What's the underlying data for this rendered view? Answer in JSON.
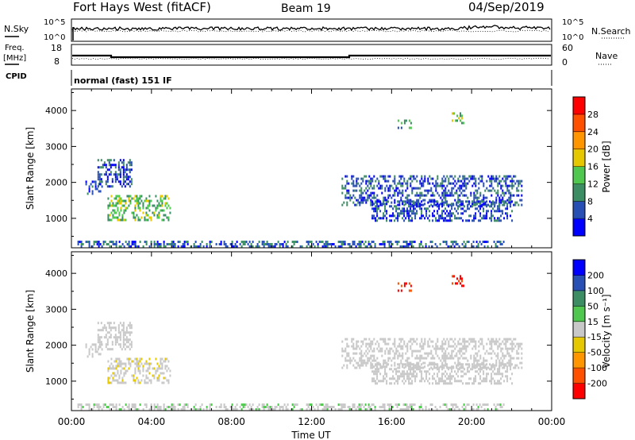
{
  "header": {
    "radar": "Fort Hays West (fitACF)",
    "beam": "Beam 19",
    "date": "04/Sep/2019",
    "mode": "normal (fast) 151 IF"
  },
  "strip_labels": {
    "nsky": "N.Sky",
    "nsearch": "N.Search",
    "freq_line1": "Freq.",
    "freq_line2": "[MHz]",
    "nave": "Nave",
    "cpid": "CPID",
    "noise_left_top": "10^5",
    "noise_left_bottom": "10^0",
    "noise_right_top": "10^5",
    "noise_right_bottom": "10^0",
    "freq_top": "18",
    "freq_bottom": "8",
    "nave_top": "60",
    "nave_bottom": "0"
  },
  "colors": {
    "power": [
      "#0000ff",
      "#2850b4",
      "#3c8c64",
      "#50c850",
      "#e6c800",
      "#ff9600",
      "#ff5000",
      "#ff0000"
    ],
    "velocity": [
      "#ff0000",
      "#ff5000",
      "#ff9600",
      "#e6c800",
      "#c8c8c8",
      "#50c850",
      "#3c8c64",
      "#2850b4",
      "#0000ff"
    ]
  },
  "chart_data": [
    {
      "type": "heatmap",
      "name": "power",
      "xlabel": "",
      "ylabel": "Slant Range [km]",
      "colorbar_label": "Power [dB]",
      "colorbar_ticks": [
        "4",
        "8",
        "12",
        "16",
        "20",
        "24",
        "28"
      ],
      "colorbar_range": [
        0,
        32
      ],
      "x_range_hours": [
        0,
        24
      ],
      "y_range_km": [
        180,
        4600
      ],
      "y_ticks": [
        "1000",
        "2000",
        "3000",
        "4000"
      ],
      "regions": [
        {
          "t": [
            0.7,
            1.5
          ],
          "r": [
            1700,
            2050
          ],
          "value": 6
        },
        {
          "t": [
            1.3,
            3.0
          ],
          "r": [
            1900,
            2650
          ],
          "value": 6
        },
        {
          "t": [
            1.8,
            4.9
          ],
          "r": [
            950,
            1650
          ],
          "value": 13
        },
        {
          "t": [
            0.3,
            22.0
          ],
          "r": [
            220,
            380
          ],
          "value": 7
        },
        {
          "t": [
            13.5,
            22.5
          ],
          "r": [
            1350,
            2200
          ],
          "value": 6
        },
        {
          "t": [
            15.0,
            22.0
          ],
          "r": [
            950,
            1500
          ],
          "value": 6
        },
        {
          "t": [
            16.3,
            17.0
          ],
          "r": [
            3550,
            3750
          ],
          "value": 10
        },
        {
          "t": [
            19.0,
            19.6
          ],
          "r": [
            3600,
            3950
          ],
          "value": 14
        }
      ]
    },
    {
      "type": "heatmap",
      "name": "velocity",
      "xlabel": "Time UT",
      "ylabel": "Slant Range [km]",
      "colorbar_label": "Velocity [m s⁻¹]",
      "colorbar_ticks": [
        "-200",
        "-100",
        "-50",
        "-15",
        "15",
        "50",
        "100",
        "200"
      ],
      "colorbar_range": [
        -250,
        250
      ],
      "x_range_hours": [
        0,
        24
      ],
      "x_ticks": [
        "00:00",
        "04:00",
        "08:00",
        "12:00",
        "16:00",
        "20:00",
        "00:00"
      ],
      "y_range_km": [
        180,
        4600
      ],
      "y_ticks": [
        "1000",
        "2000",
        "3000",
        "4000"
      ],
      "regions": [
        {
          "t": [
            0.7,
            1.5
          ],
          "r": [
            1700,
            2050
          ],
          "value": 0
        },
        {
          "t": [
            1.3,
            3.0
          ],
          "r": [
            1900,
            2650
          ],
          "value": 0
        },
        {
          "t": [
            1.8,
            4.9
          ],
          "r": [
            950,
            1650
          ],
          "value": -20
        },
        {
          "t": [
            0.3,
            22.0
          ],
          "r": [
            220,
            380
          ],
          "value": 20
        },
        {
          "t": [
            13.5,
            22.5
          ],
          "r": [
            1350,
            2200
          ],
          "value": 0
        },
        {
          "t": [
            15.0,
            22.0
          ],
          "r": [
            950,
            1500
          ],
          "value": 0
        },
        {
          "t": [
            16.3,
            17.0
          ],
          "r": [
            3550,
            3750
          ],
          "value": -200
        },
        {
          "t": [
            19.0,
            19.6
          ],
          "r": [
            3600,
            3950
          ],
          "value": -200
        }
      ]
    }
  ]
}
